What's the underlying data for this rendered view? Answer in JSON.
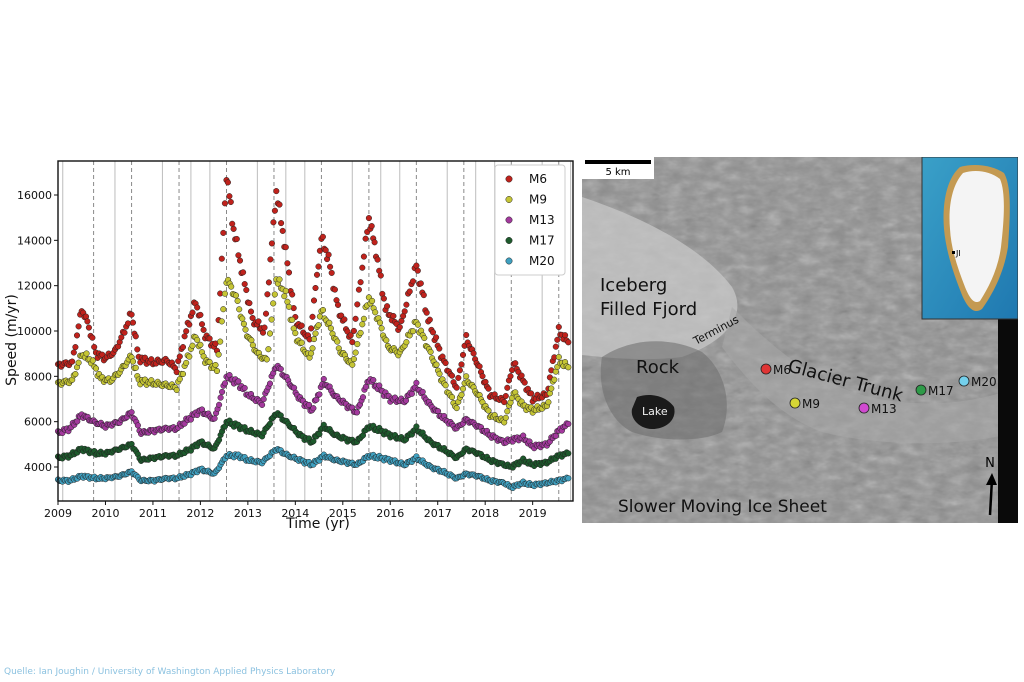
{
  "chart_data": {
    "type": "scatter",
    "xlabel": "Time (yr)",
    "ylabel": "Speed (m/yr)",
    "xlim": [
      2009,
      2019.85
    ],
    "ylim": [
      2500,
      17500
    ],
    "x_ticks": [
      2009,
      2010,
      2011,
      2012,
      2013,
      2014,
      2015,
      2016,
      2017,
      2018,
      2019
    ],
    "y_ticks": [
      4000,
      6000,
      8000,
      10000,
      12000,
      14000,
      16000
    ],
    "legend_position": "top-right",
    "vertical_gridlines": {
      "solid": [
        2009.1,
        2010.2,
        2011.2,
        2011.8,
        2012.2,
        2013.2,
        2013.8,
        2014.2,
        2015.2,
        2015.8,
        2016.2,
        2017.2,
        2017.8,
        2018.2,
        2019.2,
        2019.8
      ],
      "dashed": [
        2009.75,
        2010.55,
        2011.55,
        2012.55,
        2013.55,
        2014.55,
        2015.55,
        2016.55,
        2017.55,
        2018.55,
        2019.55
      ]
    },
    "series": [
      {
        "name": "M6",
        "color": "#c0221c",
        "points": [
          [
            2009.0,
            8500
          ],
          [
            2009.3,
            8600
          ],
          [
            2009.5,
            11000
          ],
          [
            2009.65,
            10200
          ],
          [
            2009.8,
            9000
          ],
          [
            2010.0,
            8800
          ],
          [
            2010.2,
            9100
          ],
          [
            2010.4,
            10000
          ],
          [
            2010.55,
            10800
          ],
          [
            2010.7,
            8800
          ],
          [
            2011.0,
            8600
          ],
          [
            2011.3,
            8700
          ],
          [
            2011.5,
            8300
          ],
          [
            2011.7,
            10000
          ],
          [
            2011.9,
            11300
          ],
          [
            2012.1,
            9800
          ],
          [
            2012.35,
            9200
          ],
          [
            2012.55,
            16900
          ],
          [
            2012.7,
            14500
          ],
          [
            2012.9,
            12400
          ],
          [
            2013.1,
            10500
          ],
          [
            2013.35,
            10000
          ],
          [
            2013.6,
            16200
          ],
          [
            2013.8,
            13500
          ],
          [
            2014.0,
            10500
          ],
          [
            2014.3,
            9600
          ],
          [
            2014.55,
            14100
          ],
          [
            2014.7,
            13200
          ],
          [
            2014.9,
            11000
          ],
          [
            2015.2,
            9500
          ],
          [
            2015.55,
            15000
          ],
          [
            2015.7,
            13500
          ],
          [
            2015.9,
            11000
          ],
          [
            2016.2,
            10100
          ],
          [
            2016.55,
            12900
          ],
          [
            2016.8,
            10500
          ],
          [
            2017.1,
            8800
          ],
          [
            2017.4,
            7500
          ],
          [
            2017.6,
            9700
          ],
          [
            2017.85,
            8500
          ],
          [
            2018.1,
            7200
          ],
          [
            2018.4,
            6900
          ],
          [
            2018.6,
            8600
          ],
          [
            2018.8,
            7800
          ],
          [
            2019.0,
            7000
          ],
          [
            2019.3,
            7200
          ],
          [
            2019.55,
            10000
          ],
          [
            2019.75,
            9500
          ]
        ]
      },
      {
        "name": "M9",
        "color": "#c5c535",
        "points": [
          [
            2009.0,
            7700
          ],
          [
            2009.3,
            7800
          ],
          [
            2009.5,
            9000
          ],
          [
            2009.7,
            8700
          ],
          [
            2009.9,
            7900
          ],
          [
            2010.1,
            7800
          ],
          [
            2010.3,
            8200
          ],
          [
            2010.55,
            8900
          ],
          [
            2010.7,
            7800
          ],
          [
            2011.0,
            7700
          ],
          [
            2011.3,
            7600
          ],
          [
            2011.5,
            7500
          ],
          [
            2011.7,
            8600
          ],
          [
            2011.9,
            9800
          ],
          [
            2012.1,
            8700
          ],
          [
            2012.35,
            8300
          ],
          [
            2012.55,
            12300
          ],
          [
            2012.75,
            11500
          ],
          [
            2012.95,
            10000
          ],
          [
            2013.2,
            9000
          ],
          [
            2013.4,
            8700
          ],
          [
            2013.6,
            12300
          ],
          [
            2013.8,
            11600
          ],
          [
            2014.0,
            9800
          ],
          [
            2014.3,
            8800
          ],
          [
            2014.55,
            10900
          ],
          [
            2014.75,
            10100
          ],
          [
            2014.95,
            9100
          ],
          [
            2015.2,
            8500
          ],
          [
            2015.55,
            11500
          ],
          [
            2015.75,
            10500
          ],
          [
            2015.95,
            9300
          ],
          [
            2016.2,
            9000
          ],
          [
            2016.55,
            10400
          ],
          [
            2016.85,
            9000
          ],
          [
            2017.1,
            7800
          ],
          [
            2017.4,
            6600
          ],
          [
            2017.6,
            7900
          ],
          [
            2017.85,
            7200
          ],
          [
            2018.1,
            6300
          ],
          [
            2018.4,
            6000
          ],
          [
            2018.6,
            7300
          ],
          [
            2018.8,
            6700
          ],
          [
            2019.0,
            6500
          ],
          [
            2019.3,
            6700
          ],
          [
            2019.55,
            8700
          ],
          [
            2019.75,
            8400
          ]
        ]
      },
      {
        "name": "M13",
        "color": "#a3399d",
        "points": [
          [
            2009.0,
            5500
          ],
          [
            2009.25,
            5700
          ],
          [
            2009.5,
            6300
          ],
          [
            2009.75,
            6000
          ],
          [
            2010.0,
            5800
          ],
          [
            2010.3,
            6000
          ],
          [
            2010.55,
            6400
          ],
          [
            2010.75,
            5500
          ],
          [
            2011.0,
            5600
          ],
          [
            2011.3,
            5700
          ],
          [
            2011.5,
            5700
          ],
          [
            2011.8,
            6200
          ],
          [
            2012.0,
            6500
          ],
          [
            2012.3,
            6100
          ],
          [
            2012.55,
            8000
          ],
          [
            2012.8,
            7700
          ],
          [
            2013.0,
            7200
          ],
          [
            2013.3,
            6800
          ],
          [
            2013.6,
            8500
          ],
          [
            2013.85,
            7800
          ],
          [
            2014.1,
            7000
          ],
          [
            2014.35,
            6500
          ],
          [
            2014.6,
            7800
          ],
          [
            2014.85,
            7100
          ],
          [
            2015.1,
            6700
          ],
          [
            2015.3,
            6400
          ],
          [
            2015.55,
            7900
          ],
          [
            2015.8,
            7400
          ],
          [
            2016.0,
            7000
          ],
          [
            2016.3,
            6900
          ],
          [
            2016.55,
            7600
          ],
          [
            2016.85,
            6700
          ],
          [
            2017.1,
            6200
          ],
          [
            2017.4,
            5700
          ],
          [
            2017.6,
            6100
          ],
          [
            2017.85,
            5800
          ],
          [
            2018.1,
            5400
          ],
          [
            2018.4,
            5100
          ],
          [
            2018.55,
            5200
          ],
          [
            2018.8,
            5300
          ],
          [
            2019.0,
            4900
          ],
          [
            2019.3,
            5000
          ],
          [
            2019.55,
            5600
          ],
          [
            2019.75,
            5900
          ]
        ]
      },
      {
        "name": "M17",
        "color": "#1d5a2c",
        "points": [
          [
            2009.0,
            4400
          ],
          [
            2009.25,
            4500
          ],
          [
            2009.5,
            4800
          ],
          [
            2009.8,
            4600
          ],
          [
            2010.0,
            4600
          ],
          [
            2010.3,
            4800
          ],
          [
            2010.55,
            5000
          ],
          [
            2010.75,
            4300
          ],
          [
            2011.0,
            4400
          ],
          [
            2011.3,
            4500
          ],
          [
            2011.5,
            4500
          ],
          [
            2011.8,
            4800
          ],
          [
            2012.0,
            5100
          ],
          [
            2012.3,
            4800
          ],
          [
            2012.55,
            6000
          ],
          [
            2012.8,
            5800
          ],
          [
            2013.0,
            5600
          ],
          [
            2013.3,
            5400
          ],
          [
            2013.6,
            6400
          ],
          [
            2013.85,
            5900
          ],
          [
            2014.1,
            5400
          ],
          [
            2014.35,
            5100
          ],
          [
            2014.6,
            5800
          ],
          [
            2014.85,
            5400
          ],
          [
            2015.1,
            5200
          ],
          [
            2015.3,
            5100
          ],
          [
            2015.55,
            5800
          ],
          [
            2015.8,
            5600
          ],
          [
            2016.0,
            5400
          ],
          [
            2016.3,
            5200
          ],
          [
            2016.55,
            5700
          ],
          [
            2016.85,
            5100
          ],
          [
            2017.1,
            4800
          ],
          [
            2017.4,
            4400
          ],
          [
            2017.6,
            4800
          ],
          [
            2017.85,
            4600
          ],
          [
            2018.1,
            4300
          ],
          [
            2018.4,
            4100
          ],
          [
            2018.55,
            4000
          ],
          [
            2018.8,
            4300
          ],
          [
            2019.0,
            4100
          ],
          [
            2019.3,
            4200
          ],
          [
            2019.55,
            4500
          ],
          [
            2019.75,
            4600
          ]
        ]
      },
      {
        "name": "M20",
        "color": "#3fa0c0",
        "points": [
          [
            2009.0,
            3400
          ],
          [
            2009.25,
            3400
          ],
          [
            2009.5,
            3600
          ],
          [
            2009.8,
            3500
          ],
          [
            2010.0,
            3500
          ],
          [
            2010.3,
            3600
          ],
          [
            2010.55,
            3800
          ],
          [
            2010.75,
            3400
          ],
          [
            2011.0,
            3400
          ],
          [
            2011.3,
            3500
          ],
          [
            2011.5,
            3500
          ],
          [
            2011.8,
            3700
          ],
          [
            2012.0,
            3900
          ],
          [
            2012.3,
            3700
          ],
          [
            2012.55,
            4500
          ],
          [
            2012.8,
            4500
          ],
          [
            2013.0,
            4300
          ],
          [
            2013.3,
            4200
          ],
          [
            2013.6,
            4800
          ],
          [
            2013.85,
            4500
          ],
          [
            2014.1,
            4300
          ],
          [
            2014.35,
            4100
          ],
          [
            2014.6,
            4500
          ],
          [
            2014.85,
            4300
          ],
          [
            2015.1,
            4200
          ],
          [
            2015.3,
            4100
          ],
          [
            2015.55,
            4500
          ],
          [
            2015.8,
            4400
          ],
          [
            2016.0,
            4300
          ],
          [
            2016.3,
            4100
          ],
          [
            2016.55,
            4400
          ],
          [
            2016.85,
            4000
          ],
          [
            2017.1,
            3800
          ],
          [
            2017.4,
            3500
          ],
          [
            2017.6,
            3700
          ],
          [
            2017.85,
            3600
          ],
          [
            2018.1,
            3400
          ],
          [
            2018.4,
            3300
          ],
          [
            2018.55,
            3100
          ],
          [
            2018.8,
            3300
          ],
          [
            2019.0,
            3200
          ],
          [
            2019.3,
            3300
          ],
          [
            2019.55,
            3400
          ],
          [
            2019.75,
            3500
          ]
        ]
      }
    ]
  },
  "map": {
    "scale_label": "5 km",
    "labels": {
      "iceberg_fjord_line1": "Iceberg",
      "iceberg_fjord_line2": "Filled Fjord",
      "terminus": "Terminus",
      "rock": "Rock",
      "lake": "Lake",
      "glacier_trunk": "Glacier Trunk",
      "ice_sheet": "Slower Moving Ice Sheet",
      "north": "N",
      "inset_marker": "JI"
    },
    "markers": [
      {
        "name": "M6",
        "color": "#e03535"
      },
      {
        "name": "M9",
        "color": "#d6d635"
      },
      {
        "name": "M13",
        "color": "#d04ad0"
      },
      {
        "name": "M17",
        "color": "#2e9a48"
      },
      {
        "name": "M20",
        "color": "#74d0ec"
      }
    ]
  },
  "credit": "Quelle: Ian Joughin / University of Washington Applied Physics Laboratory"
}
